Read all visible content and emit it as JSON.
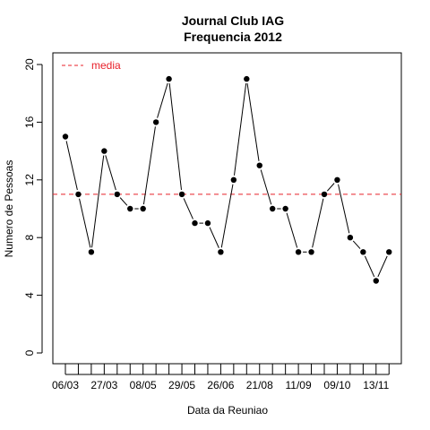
{
  "chart_data": {
    "type": "line",
    "title": "Journal Club IAG",
    "subtitle": "Frequencia 2012",
    "xlabel": "Data da Reuniao",
    "ylabel": "Numero de Pessoas",
    "ylim": [
      0,
      20
    ],
    "yticks": [
      0,
      4,
      8,
      12,
      16,
      20
    ],
    "x_tick_labels": [
      {
        "index": 1,
        "label": "06/03"
      },
      {
        "index": 4,
        "label": "27/03"
      },
      {
        "index": 7,
        "label": "08/05"
      },
      {
        "index": 10,
        "label": "29/05"
      },
      {
        "index": 13,
        "label": "26/06"
      },
      {
        "index": 16,
        "label": "21/08"
      },
      {
        "index": 19,
        "label": "11/09"
      },
      {
        "index": 22,
        "label": "09/10"
      },
      {
        "index": 25,
        "label": "13/11"
      }
    ],
    "series": [
      {
        "values": [
          15,
          11,
          7,
          14,
          11,
          10,
          10,
          16,
          19,
          11,
          9,
          9,
          7,
          12,
          19,
          13,
          10,
          10,
          7,
          7,
          11,
          12,
          8,
          7,
          5,
          7
        ]
      }
    ],
    "mean_line": {
      "label": "media",
      "value": 11,
      "color": "#e8202a"
    },
    "legend_position": "top-left",
    "grid": false
  }
}
